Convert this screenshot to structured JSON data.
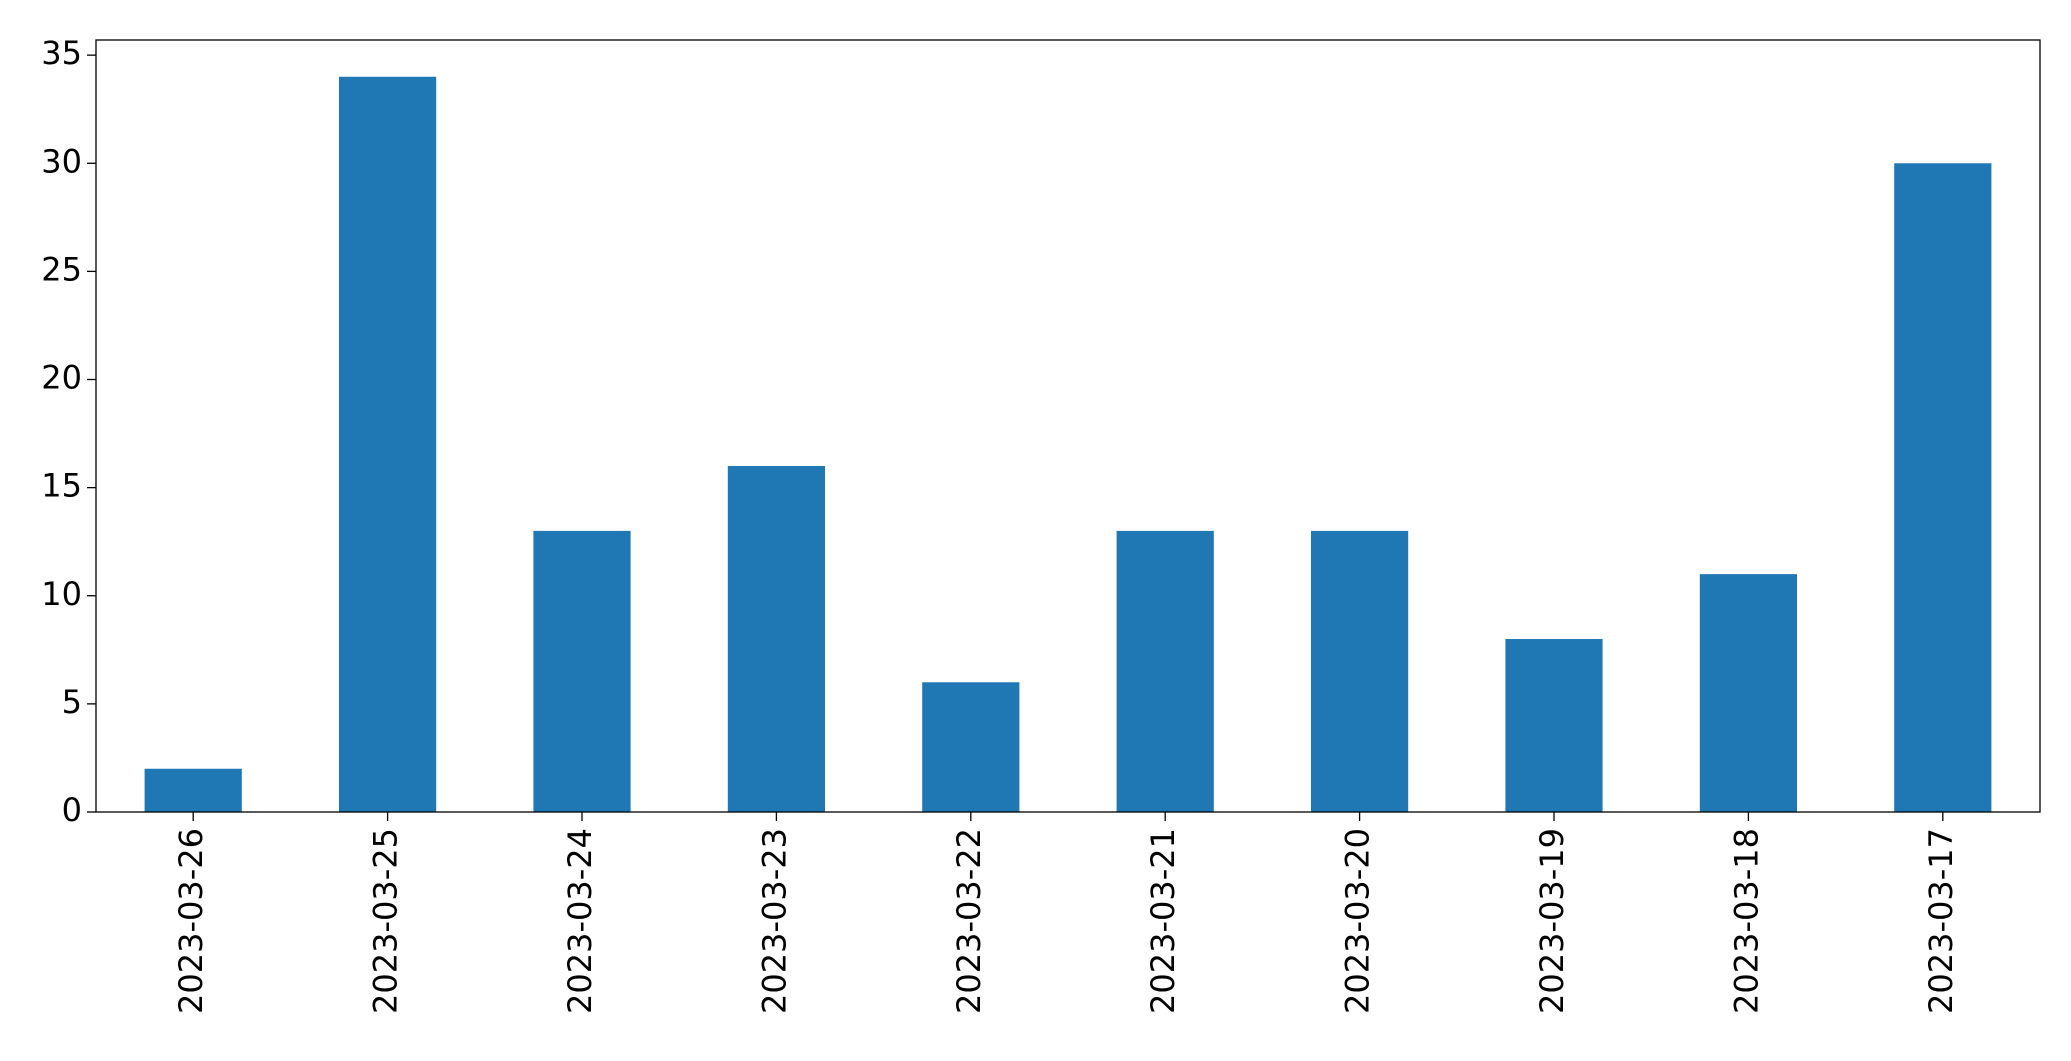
{
  "chart_data": {
    "type": "bar",
    "categories": [
      "2023-03-26",
      "2023-03-25",
      "2023-03-24",
      "2023-03-23",
      "2023-03-22",
      "2023-03-21",
      "2023-03-20",
      "2023-03-19",
      "2023-03-18",
      "2023-03-17"
    ],
    "values": [
      2,
      34,
      13,
      16,
      6,
      13,
      13,
      8,
      11,
      30
    ],
    "color": "#1f77b4",
    "ylim": [
      0,
      35.7
    ],
    "yticks": [
      0,
      5,
      10,
      15,
      20,
      25,
      30,
      35
    ],
    "grid": false
  }
}
